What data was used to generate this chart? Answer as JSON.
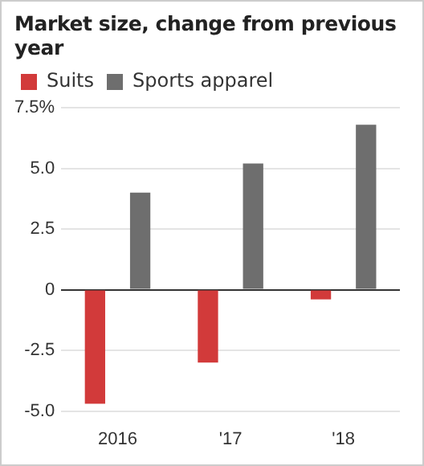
{
  "chart_data": {
    "type": "bar",
    "title": "Market size, change from previous year",
    "categories": [
      "2016",
      "'17",
      "'18"
    ],
    "series": [
      {
        "name": "Suits",
        "color": "#d23a3a",
        "values": [
          -4.7,
          -3.0,
          -0.4
        ]
      },
      {
        "name": "Sports apparel",
        "color": "#6e6e6e",
        "values": [
          4.0,
          5.2,
          6.8
        ]
      }
    ],
    "ylim": [
      -5,
      7.5
    ],
    "yticks": [
      {
        "value": -5,
        "label": "-5.0"
      },
      {
        "value": -2.5,
        "label": "-2.5"
      },
      0,
      {
        "value": 2.5,
        "label": "2.5"
      },
      {
        "value": 5,
        "label": "5.0"
      },
      {
        "value": 7.5,
        "label": "7.5%"
      }
    ],
    "grid": "y",
    "legend": "top left"
  }
}
